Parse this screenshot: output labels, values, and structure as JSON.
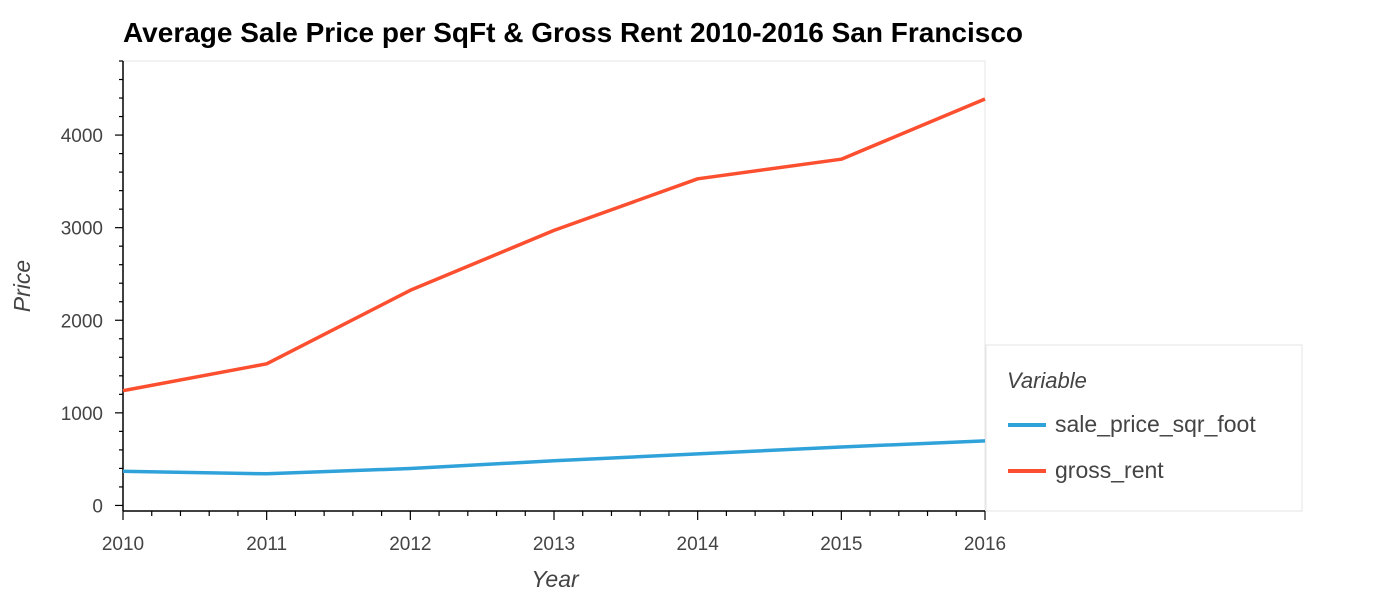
{
  "chart_data": {
    "type": "line",
    "title": "Average Sale Price per SqFt & Gross Rent 2010-2016 San Francisco",
    "xlabel": "Year",
    "ylabel": "Price",
    "x": [
      2010,
      2011,
      2012,
      2013,
      2014,
      2015,
      2016
    ],
    "xlim": [
      2010,
      2016
    ],
    "ylim": [
      -60,
      4800
    ],
    "yticks": [
      0,
      1000,
      2000,
      3000,
      4000
    ],
    "xticks": [
      2010,
      2011,
      2012,
      2013,
      2014,
      2015,
      2016
    ],
    "grid": false,
    "legend": {
      "title": "Variable",
      "placement": "right"
    },
    "series": [
      {
        "name": "sale_price_sqr_foot",
        "color": "#30a2da",
        "values": [
          369,
          342,
          399,
          483,
          557,
          631,
          697
        ]
      },
      {
        "name": "gross_rent",
        "color": "#fc4f30",
        "values": [
          1239,
          1530,
          2324,
          2971,
          3528,
          3739,
          4390
        ]
      }
    ]
  }
}
